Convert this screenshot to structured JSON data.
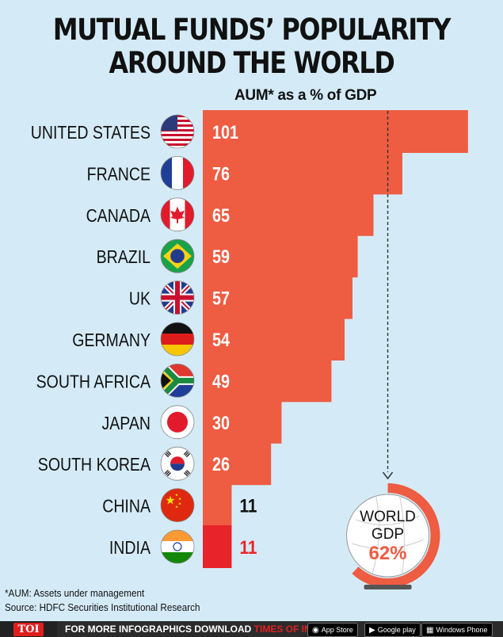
{
  "title": {
    "line1": "MUTUAL FUNDS’ POPULARITY",
    "line2": "AROUND THE WORLD"
  },
  "subtitle": "AUM* as a % of GDP",
  "chart_data": {
    "type": "bar",
    "orientation": "horizontal",
    "categories": [
      "UNITED STATES",
      "FRANCE",
      "CANADA",
      "BRAZIL",
      "UK",
      "GERMANY",
      "SOUTH AFRICA",
      "JAPAN",
      "SOUTH KOREA",
      "CHINA",
      "INDIA"
    ],
    "values": [
      101,
      76,
      65,
      59,
      57,
      54,
      49,
      30,
      26,
      11,
      11
    ],
    "value_labels": [
      "101",
      "76",
      "65",
      "59",
      "57",
      "54",
      "49",
      "30",
      "26",
      "11",
      "11"
    ],
    "reference_line": {
      "value": 62,
      "label_line1": "WORLD",
      "label_line2": "GDP",
      "label_value": "62%"
    },
    "colors": {
      "bar": "#ee5c42",
      "highlight": "#e8242a",
      "text_inside": "#ffffff",
      "text_outside": "#111111",
      "highlight_text": "#e8242a",
      "ring": "#ee5c42"
    }
  },
  "flags": [
    "us-flag-icon",
    "france-flag-icon",
    "canada-flag-icon",
    "brazil-flag-icon",
    "uk-flag-icon",
    "germany-flag-icon",
    "south-africa-flag-icon",
    "japan-flag-icon",
    "south-korea-flag-icon",
    "china-flag-icon",
    "india-flag-icon"
  ],
  "notes": {
    "aum": "*AUM: Assets under management",
    "source": "Source: HDFC Securities Institutional Research"
  },
  "footer": {
    "logo": "TOI",
    "cta": "FOR MORE  INFOGRAPHICS DOWNLOAD ",
    "brand": "TIMES OF INDIA  APP",
    "app_store": "App Store",
    "google_play": "Google play",
    "windows": "Windows Phone"
  }
}
